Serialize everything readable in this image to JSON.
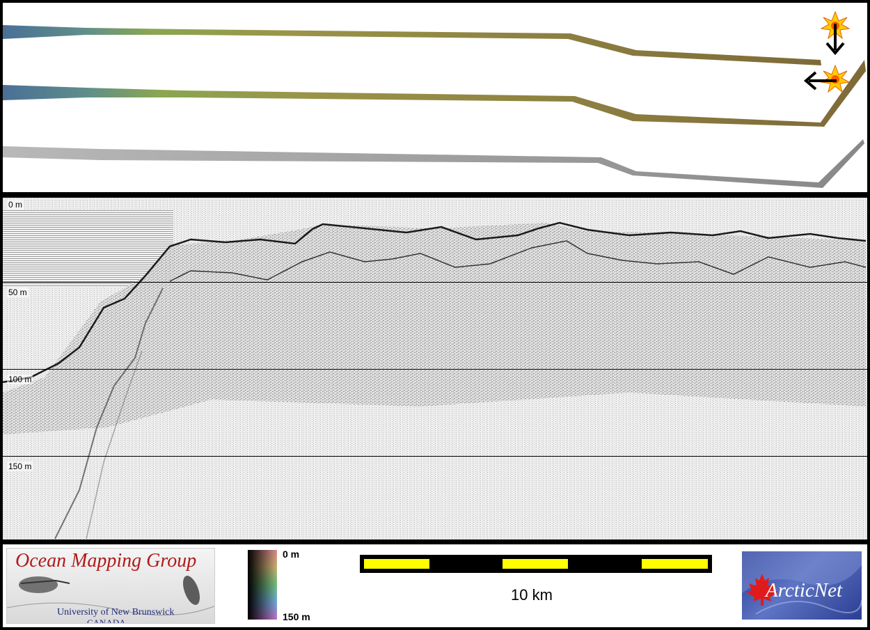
{
  "profile": {
    "depth_labels": [
      "0 m",
      "50 m",
      "100 m",
      "150 m"
    ],
    "depth_range_m": [
      0,
      150
    ]
  },
  "logo_omg": {
    "title": "Ocean Mapping Group",
    "university": "University of New Brunswick",
    "country": "CANADA"
  },
  "colorbar": {
    "top_label": "0 m",
    "bottom_label": "150 m"
  },
  "scalebar": {
    "label": "10 km"
  },
  "logo_arcticnet": {
    "text": "ArcticNet"
  },
  "icons": [
    "sun-marker-icon",
    "arrow-down-icon",
    "arrow-left-icon",
    "maple-leaf-icon"
  ],
  "colors": {
    "frame": "#000000",
    "scale_fill": "#ffff00",
    "omg_title": "#b01a1a",
    "arcticnet_bg": "#2b3f92"
  }
}
